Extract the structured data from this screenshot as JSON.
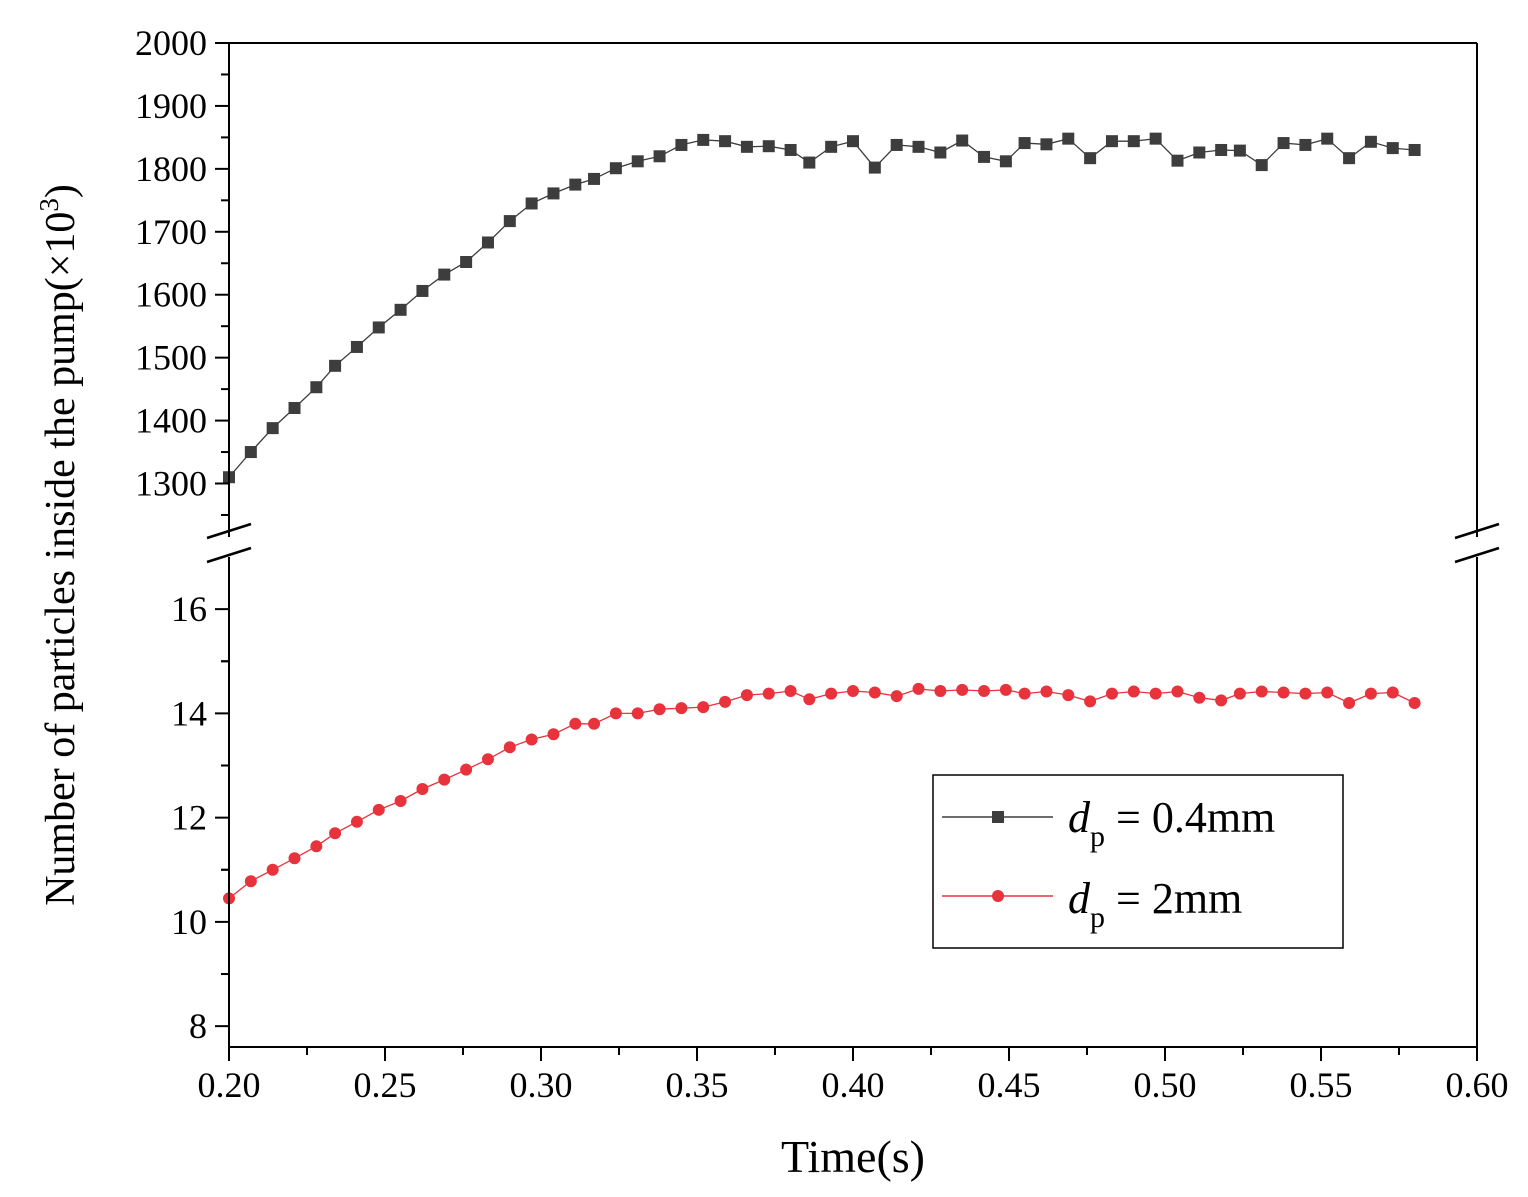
{
  "chart_data": {
    "type": "line",
    "title": "",
    "xlabel": "Time(s)",
    "ylabel_main": "Number of particles inside the pump(×10",
    "ylabel_sup": "3",
    "ylabel_close": ")",
    "xlim": [
      0.2,
      0.6
    ],
    "x_ticks": [
      "0.20",
      "0.25",
      "0.30",
      "0.35",
      "0.40",
      "0.45",
      "0.50",
      "0.55",
      "0.60"
    ],
    "x_tick_values": [
      0.2,
      0.25,
      0.3,
      0.35,
      0.4,
      0.45,
      0.5,
      0.55,
      0.6
    ],
    "broken_axis": {
      "upper": {
        "ylim": [
          1215,
          2000
        ],
        "ticks": [
          "1300",
          "1400",
          "1500",
          "1600",
          "1700",
          "1800",
          "1900",
          "2000"
        ],
        "tick_values": [
          1300,
          1400,
          1500,
          1600,
          1700,
          1800,
          1900,
          2000
        ]
      },
      "lower": {
        "ylim": [
          7.6,
          17.0
        ],
        "ticks": [
          "8",
          "10",
          "12",
          "14",
          "16"
        ],
        "tick_values": [
          8,
          10,
          12,
          14,
          16
        ]
      }
    },
    "x": [
      0.2,
      0.207,
      0.214,
      0.221,
      0.228,
      0.234,
      0.241,
      0.248,
      0.255,
      0.262,
      0.269,
      0.276,
      0.283,
      0.29,
      0.297,
      0.304,
      0.311,
      0.317,
      0.324,
      0.331,
      0.338,
      0.345,
      0.352,
      0.359,
      0.366,
      0.373,
      0.38,
      0.386,
      0.393,
      0.4,
      0.407,
      0.414,
      0.421,
      0.428,
      0.435,
      0.442,
      0.449,
      0.455,
      0.462,
      0.469,
      0.476,
      0.483,
      0.49,
      0.497,
      0.504,
      0.511,
      0.518,
      0.524,
      0.531,
      0.538,
      0.545,
      0.552,
      0.559,
      0.566,
      0.573,
      0.58
    ],
    "series": [
      {
        "name": "d_p = 0.4mm",
        "legend_label_main": "d",
        "legend_label_sub": "p",
        "legend_label_rest": " = 0.4mm",
        "color": "#3d3d3d",
        "marker": "square",
        "panel": "upper",
        "values": [
          1310,
          1350,
          1388,
          1420,
          1453,
          1487,
          1517,
          1548,
          1576,
          1606,
          1632,
          1652,
          1683,
          1717,
          1745,
          1761,
          1775,
          1784,
          1801,
          1812,
          1820,
          1838,
          1846,
          1844,
          1835,
          1836,
          1830,
          1810,
          1835,
          1844,
          1802,
          1838,
          1835,
          1826,
          1845,
          1819,
          1812,
          1841,
          1839,
          1848,
          1817,
          1844,
          1844,
          1848,
          1813,
          1826,
          1830,
          1829,
          1806,
          1841,
          1838,
          1848,
          1817,
          1843,
          1833,
          1830
        ]
      },
      {
        "name": "d_p = 2mm",
        "legend_label_main": "d",
        "legend_label_sub": "p",
        "legend_label_rest": " = 2mm",
        "color": "#e8323c",
        "marker": "circle",
        "panel": "lower",
        "values": [
          10.45,
          10.78,
          11.0,
          11.22,
          11.45,
          11.7,
          11.92,
          12.15,
          12.32,
          12.55,
          12.73,
          12.92,
          13.12,
          13.35,
          13.5,
          13.6,
          13.8,
          13.8,
          14.0,
          14.0,
          14.08,
          14.1,
          14.12,
          14.22,
          14.35,
          14.38,
          14.43,
          14.27,
          14.38,
          14.43,
          14.4,
          14.33,
          14.47,
          14.43,
          14.45,
          14.43,
          14.45,
          14.38,
          14.42,
          14.35,
          14.23,
          14.38,
          14.42,
          14.38,
          14.42,
          14.3,
          14.25,
          14.38,
          14.42,
          14.4,
          14.38,
          14.4,
          14.2,
          14.38,
          14.4,
          14.2
        ]
      }
    ],
    "legend_position": "lower-right"
  }
}
